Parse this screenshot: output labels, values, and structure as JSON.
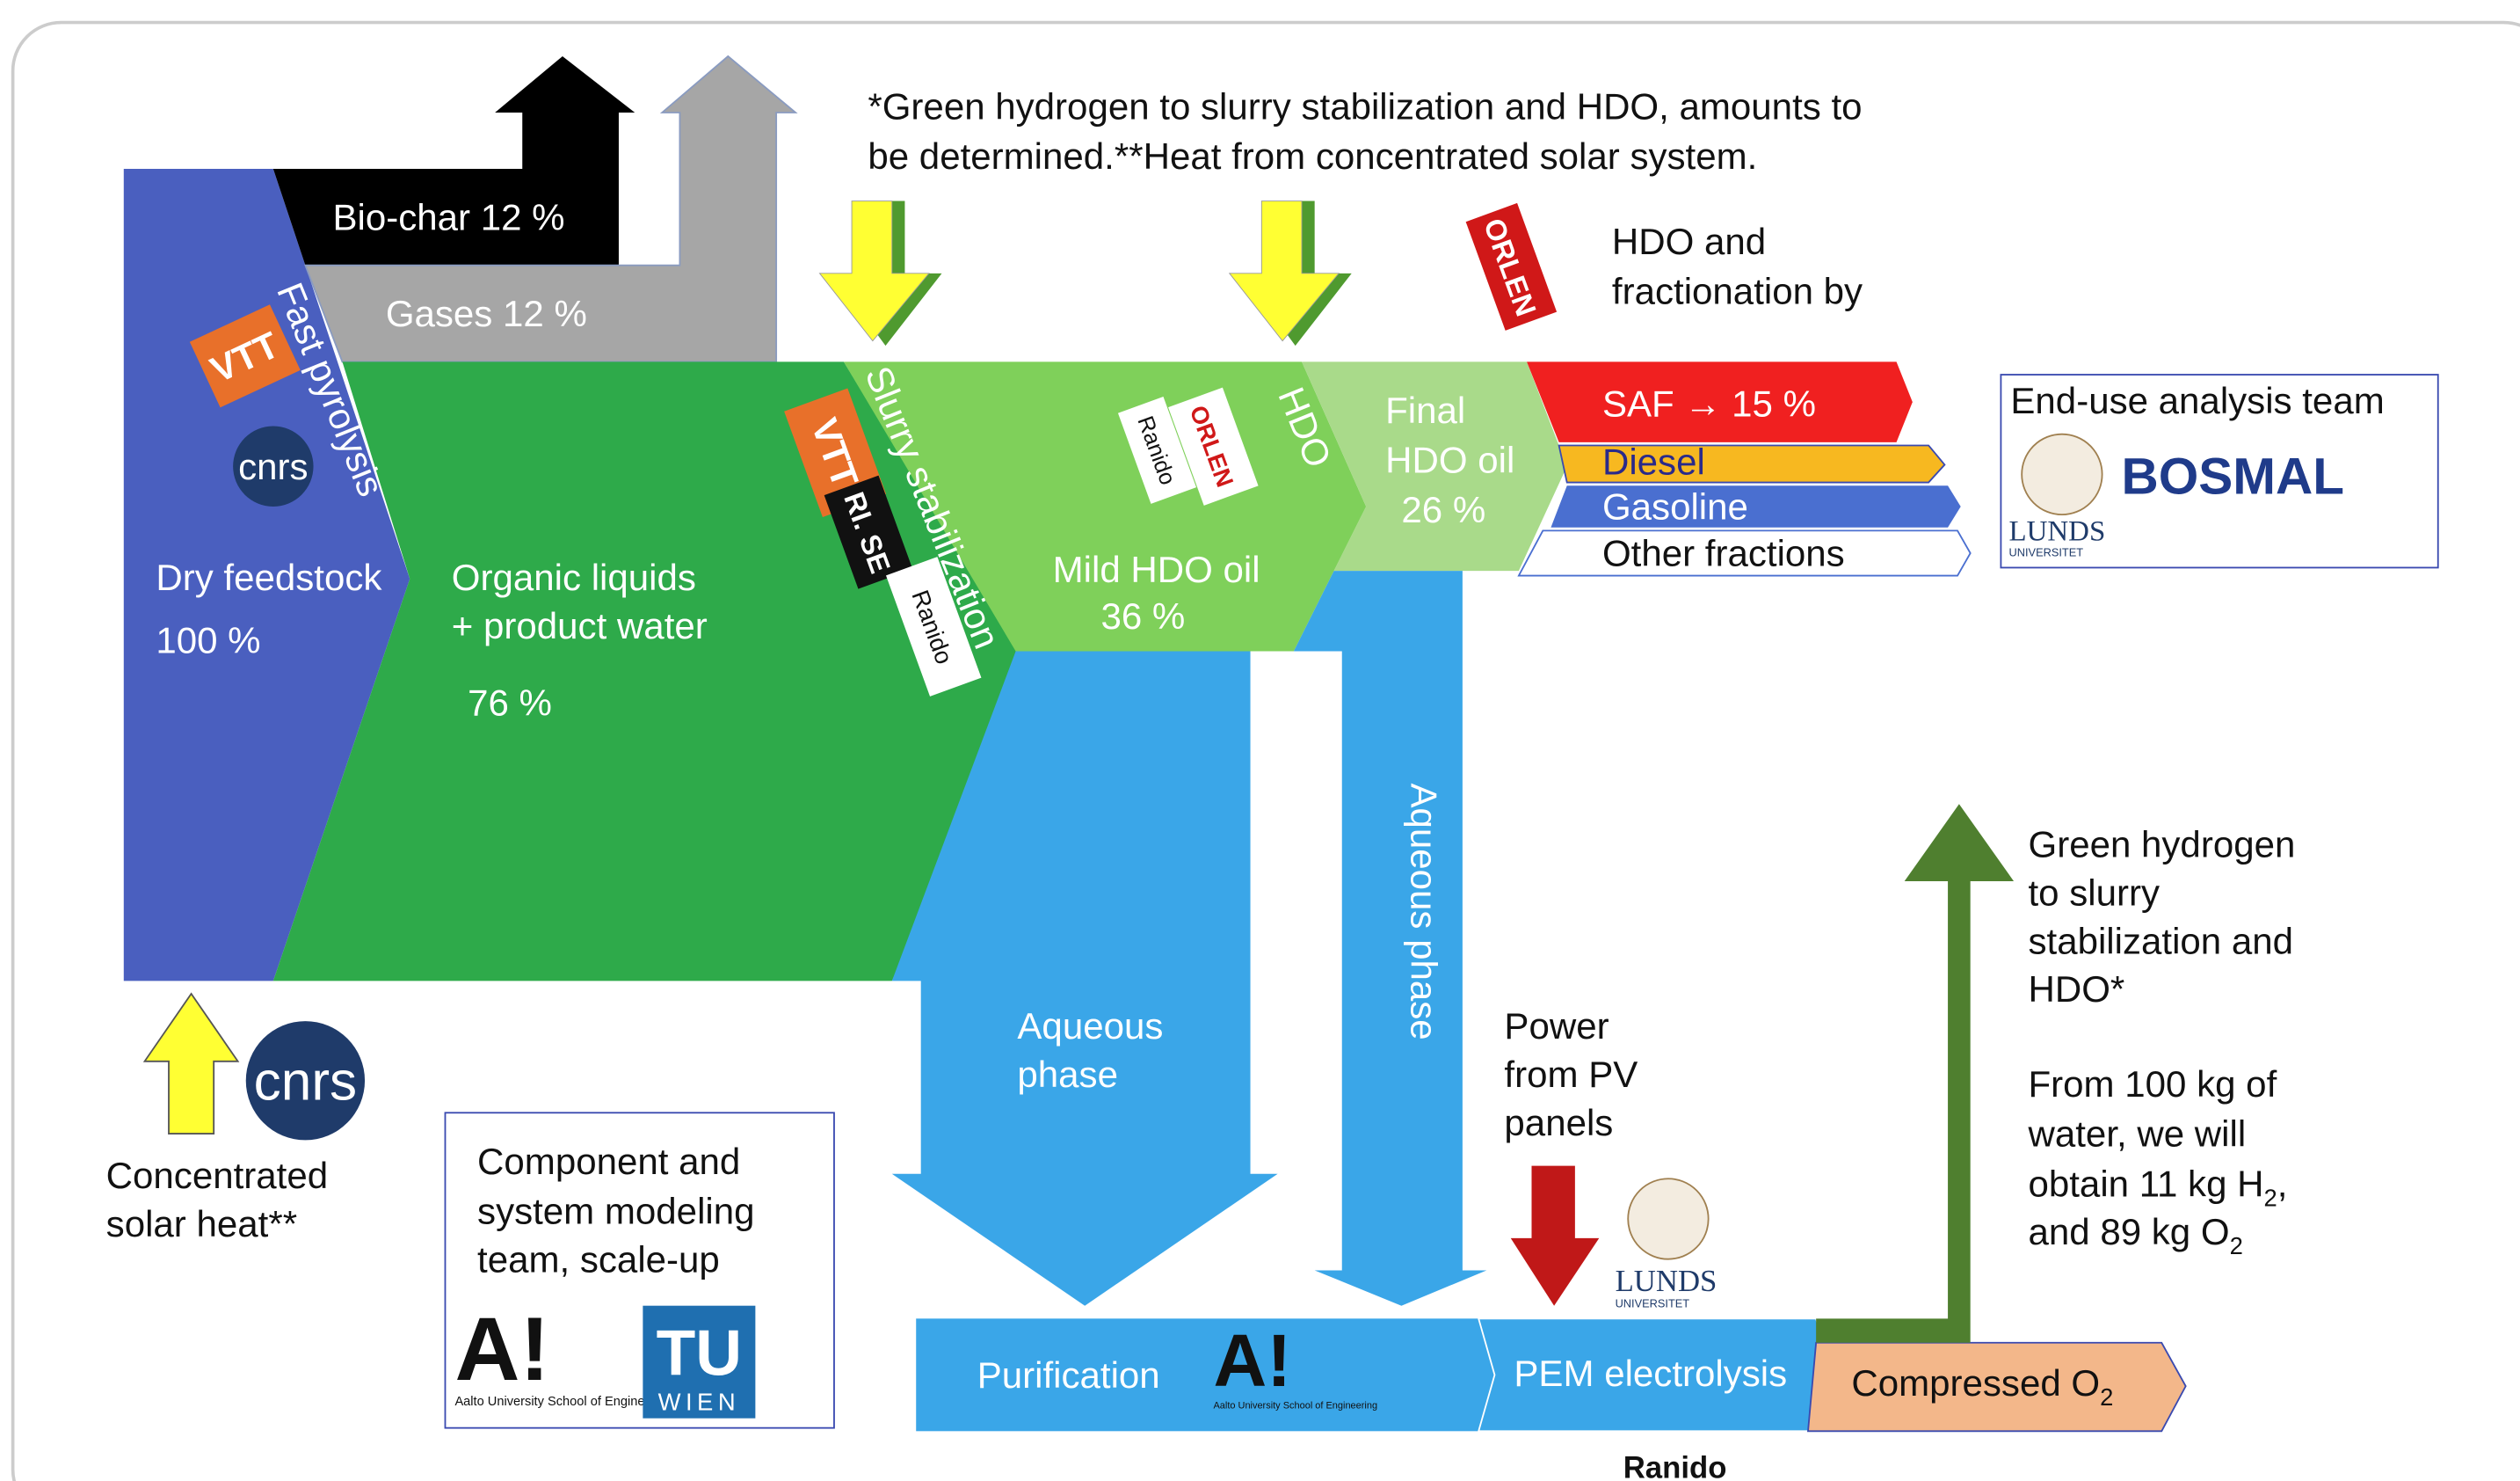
{
  "note": [
    "*Green hydrogen to slurry stabilization and HDO, amounts to",
    "be determined.**Heat from concentrated solar system."
  ],
  "biochar": "Bio-char 12 %",
  "gases": "Gases 12 %",
  "fast_pyrolysis": "Fast pyrolysis",
  "feedstock": [
    "Dry feedstock",
    "100 %"
  ],
  "organic": [
    "Organic liquids",
    "+ product water",
    "76 %"
  ],
  "slurry": "Slurry stabilization",
  "hdo": "HDO",
  "mild": [
    "Mild HDO oil",
    "36 %"
  ],
  "final": [
    "Final",
    "HDO oil",
    "26 %"
  ],
  "fractions": [
    "SAF → 15 %",
    "Diesel",
    "Gasoline",
    "Other fractions"
  ],
  "hdo_by": [
    "HDO and",
    "fractionation by"
  ],
  "end_use": "End-use analysis team",
  "aqueous_vertical": "Aqueous phase",
  "aqueous": [
    "Aqueous",
    "phase"
  ],
  "power": [
    "Power",
    "from PV",
    "panels"
  ],
  "green_h2": [
    "Green hydrogen",
    "to slurry",
    "stabilization and",
    "HDO*"
  ],
  "from_water": [
    "From 100 kg of",
    "water, we will"
  ],
  "obtain": {
    "text": "obtain 11 kg H",
    "sub": "2",
    "tail": ","
  },
  "and89": {
    "text": "and 89 kg O",
    "sub": "2"
  },
  "solar": [
    "Concentrated",
    "solar heat**"
  ],
  "modeling": [
    "Component and",
    "system modeling",
    "team, scale-up"
  ],
  "purification": "Purification",
  "pem": "PEM electrolysis",
  "compressed": {
    "text": "Compressed O",
    "sub": "2"
  },
  "ranido": "Ranido",
  "logos": {
    "vtt": "VTT",
    "cnrs": "cnrs",
    "orlen": "ORLEN",
    "rise": "RI. SE",
    "bosmal": "BOSMAL",
    "lunds": "LUNDS",
    "univ": "UNIVERSITET",
    "aalto": "A!",
    "aalto_sub": "Aalto University School of Engineering",
    "tu": "TU",
    "wien": "WIEN"
  }
}
